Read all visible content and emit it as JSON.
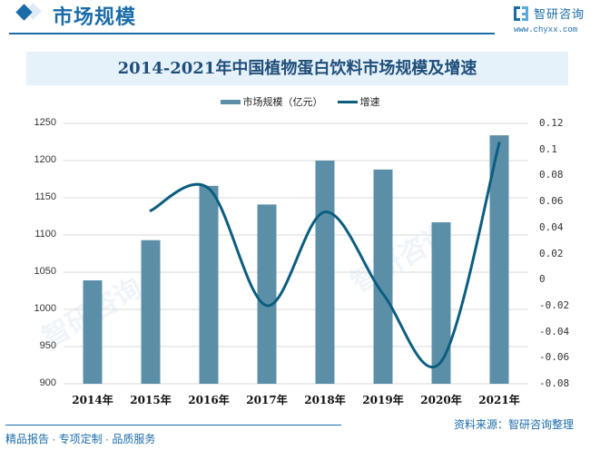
{
  "header": {
    "section_title": "市场规模",
    "brand_name": "智研咨询",
    "brand_url": "www.chyxx.com",
    "accent_color": "#1a6ca8"
  },
  "chart": {
    "title": "2014-2021年中国植物蛋白饮料市场规模及增速",
    "legend": {
      "bar": "市场规模（亿元）",
      "line": "增速"
    },
    "left_ticks": [
      "1250",
      "1200",
      "1150",
      "1100",
      "1050",
      "1000",
      "950",
      "900"
    ],
    "right_ticks": [
      "0.12",
      "0.1",
      "0.08",
      "0.06",
      "0.04",
      "0.02",
      "0",
      "-0.02",
      "-0.04",
      "-0.06",
      "-0.08"
    ],
    "x_labels": [
      "2014年",
      "2015年",
      "2016年",
      "2017年",
      "2018年",
      "2019年",
      "2020年",
      "2021年"
    ]
  },
  "chart_data": {
    "type": "bar",
    "title": "2014-2021年中国植物蛋白饮料市场规模及增速",
    "categories": [
      "2014年",
      "2015年",
      "2016年",
      "2017年",
      "2018年",
      "2019年",
      "2020年",
      "2021年"
    ],
    "series": [
      {
        "name": "市场规模（亿元）",
        "type": "bar",
        "axis": "left",
        "color": "#5b8fa8",
        "values": [
          1039,
          1093,
          1166,
          1141,
          1200,
          1188,
          1117,
          1234
        ]
      },
      {
        "name": "增速",
        "type": "line",
        "axis": "right",
        "color": "#0c5d7f",
        "values": [
          null,
          0.053,
          0.07,
          -0.02,
          0.052,
          -0.011,
          -0.063,
          0.105
        ]
      }
    ],
    "ylim_left": [
      900,
      1250
    ],
    "ylim_right": [
      -0.08,
      0.12
    ],
    "xlabel": "",
    "ylabel": "",
    "grid": true,
    "legend_position": "top"
  },
  "footer": {
    "left": "精品报告 · 专项定制 · 品质服务",
    "source": "资料来源：智研咨询整理"
  }
}
